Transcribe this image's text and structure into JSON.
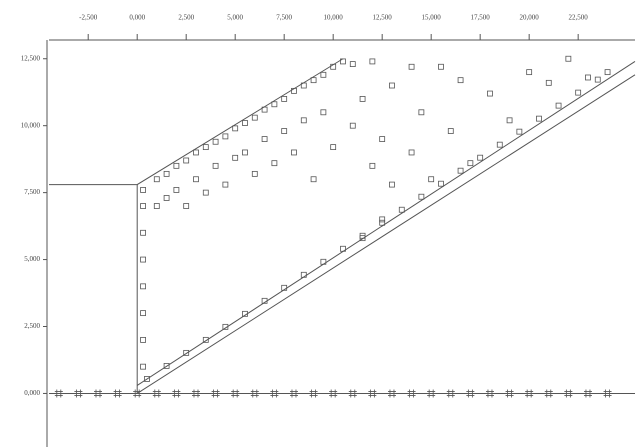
{
  "chart_data": {
    "type": "scatter",
    "color": "#555555",
    "background": "#ffffff",
    "xlim": [
      -4500,
      25400
    ],
    "ylim": [
      -2000,
      13200
    ],
    "xticks": [
      {
        "value": -2500,
        "label": "-2,500"
      },
      {
        "value": 0,
        "label": "0,000"
      },
      {
        "value": 2500,
        "label": "2,500"
      },
      {
        "value": 5000,
        "label": "5,000"
      },
      {
        "value": 7500,
        "label": "7,500"
      },
      {
        "value": 10000,
        "label": "10,000"
      },
      {
        "value": 12500,
        "label": "12,500"
      },
      {
        "value": 15000,
        "label": "15,000"
      },
      {
        "value": 17500,
        "label": "17,500"
      },
      {
        "value": 20000,
        "label": "20,000"
      },
      {
        "value": 22500,
        "label": "22,500"
      }
    ],
    "yticks": [
      {
        "value": 0,
        "label": "0,000"
      },
      {
        "value": 2500,
        "label": "2,500"
      },
      {
        "value": 5000,
        "label": "5,000"
      },
      {
        "value": 7500,
        "label": "7,500"
      },
      {
        "value": 10000,
        "label": "10,000"
      },
      {
        "value": 12500,
        "label": "12,500"
      }
    ],
    "series": [
      {
        "marker": "square",
        "x": [
          300,
          300,
          300,
          300,
          300,
          300,
          300,
          300,
          1000,
          1000,
          1500,
          1500,
          2000,
          2000,
          2500,
          2500,
          3000,
          3000,
          3500,
          3500,
          4000,
          4000,
          4500,
          4500,
          5000,
          5000,
          5500,
          5500,
          6000,
          6000,
          6500,
          6500,
          7000,
          7000,
          7500,
          7500,
          8000,
          8000,
          8500,
          8500,
          9000,
          9000,
          9500,
          9500,
          10000,
          10000,
          10500,
          11000,
          11000,
          11500,
          11500,
          12000,
          12000,
          12500,
          12500,
          13000,
          13000,
          14000,
          14000,
          14500,
          15000,
          15500,
          16000,
          16500,
          17000,
          18000,
          19000,
          20000,
          21000,
          22000,
          23000,
          24000
        ],
        "values": [
          7600,
          7000,
          6000,
          5000,
          4000,
          3000,
          2000,
          1000,
          8000,
          7000,
          8200,
          7300,
          8500,
          7600,
          8700,
          7000,
          9000,
          8000,
          9200,
          7500,
          9400,
          8500,
          9600,
          7800,
          9900,
          8800,
          10100,
          9000,
          10300,
          8200,
          10600,
          9500,
          10800,
          8600,
          11000,
          9800,
          11300,
          9000,
          11500,
          10200,
          11700,
          8000,
          11900,
          10500,
          12200,
          9200,
          12400,
          12300,
          10000,
          11000,
          5800,
          12400,
          8500,
          9500,
          6500,
          11500,
          7800,
          12200,
          9000,
          10500,
          8000,
          12200,
          9800,
          11700,
          8600,
          11200,
          10200,
          12000,
          11600,
          12500,
          11800,
          12000
        ]
      },
      {
        "marker": "square",
        "x": [
          500,
          1500,
          2500,
          3500,
          4500,
          5500,
          6500,
          7500,
          8500,
          9500,
          10500,
          11500,
          12500,
          13500,
          14500,
          15500,
          16500,
          17500,
          18500,
          19500,
          20500,
          21500,
          22500,
          23500
        ],
        "values": [
          543,
          1029,
          1515,
          2001,
          2487,
          2973,
          3459,
          3945,
          4431,
          4917,
          5403,
          5889,
          6375,
          6861,
          7347,
          7833,
          8319,
          8805,
          9291,
          9777,
          10263,
          10749,
          11235,
          11721
        ]
      },
      {
        "marker": "hash",
        "x": [
          -4000,
          -3000,
          -2000,
          -1000,
          0,
          1000,
          2000,
          3000,
          4000,
          5000,
          6000,
          7000,
          8000,
          9000,
          10000,
          11000,
          12000,
          13000,
          14000,
          15000,
          16000,
          17000,
          18000,
          19000,
          20000,
          21000,
          22000,
          23000,
          24000
        ],
        "values": [
          0,
          0,
          0,
          0,
          0,
          0,
          0,
          0,
          0,
          0,
          0,
          0,
          0,
          0,
          0,
          0,
          0,
          0,
          0,
          0,
          0,
          0,
          0,
          0,
          0,
          0,
          0,
          0,
          0
        ]
      },
      {
        "marker": "line",
        "x": [
          -4500,
          0,
          10500
        ],
        "values": [
          7800,
          7800,
          12500
        ]
      },
      {
        "marker": "line",
        "x": [
          0,
          0
        ],
        "values": [
          7800,
          0
        ]
      },
      {
        "marker": "line",
        "x": [
          0,
          25400
        ],
        "values": [
          0,
          11900
        ]
      },
      {
        "marker": "line",
        "x": [
          0,
          25400
        ],
        "values": [
          300,
          12400
        ]
      },
      {
        "marker": "line",
        "x": [
          -4500,
          25400
        ],
        "values": [
          0,
          0
        ]
      }
    ]
  }
}
